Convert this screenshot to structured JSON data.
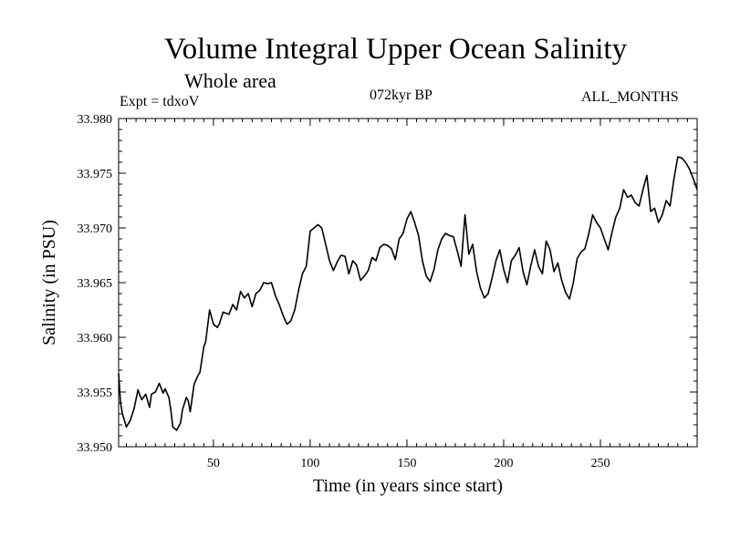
{
  "header": {
    "title": "Volume Integral Upper Ocean Salinity",
    "subtitle": "Whole area",
    "experiment": "Expt = tdxoV",
    "period": "072kyr BP",
    "months": "ALL_MONTHS"
  },
  "chart_data": {
    "type": "line",
    "title": "Volume Integral Upper Ocean Salinity",
    "xlabel": "Time (in years since start)",
    "ylabel": "Salinity (in PSU)",
    "xlim": [
      1,
      300
    ],
    "ylim": [
      33.95,
      33.98
    ],
    "x_ticks": [
      50,
      100,
      150,
      200,
      250
    ],
    "x_tick_labels": [
      "50",
      "100",
      "150",
      "200",
      "250"
    ],
    "y_ticks": [
      33.95,
      33.955,
      33.96,
      33.965,
      33.97,
      33.975,
      33.98
    ],
    "y_tick_labels": [
      "33.950",
      "33.955",
      "33.960",
      "33.965",
      "33.970",
      "33.975",
      "33.980"
    ],
    "grid": false,
    "series": [
      {
        "color": "#000000",
        "x": [
          1,
          2,
          3,
          5,
          7,
          9,
          11,
          12,
          13,
          15,
          17,
          18,
          20,
          22,
          24,
          25,
          27,
          28,
          29,
          31,
          33,
          34,
          36,
          37,
          38,
          40,
          42,
          43,
          45,
          46,
          48,
          50,
          52,
          53,
          55,
          58,
          60,
          62,
          64,
          66,
          68,
          70,
          72,
          74,
          76,
          78,
          80,
          82,
          84,
          86,
          88,
          90,
          92,
          94,
          96,
          98,
          100,
          102,
          104,
          106,
          108,
          110,
          112,
          114,
          116,
          118,
          120,
          122,
          124,
          126,
          128,
          130,
          132,
          134,
          136,
          138,
          140,
          142,
          144,
          146,
          148,
          150,
          152,
          154,
          156,
          158,
          160,
          162,
          164,
          166,
          168,
          170,
          172,
          174,
          176,
          178,
          180,
          182,
          184,
          186,
          188,
          190,
          192,
          194,
          196,
          198,
          200,
          202,
          204,
          206,
          208,
          210,
          212,
          214,
          216,
          218,
          220,
          222,
          224,
          226,
          228,
          230,
          232,
          234,
          236,
          238,
          240,
          242,
          244,
          246,
          248,
          250,
          252,
          254,
          256,
          258,
          260,
          262,
          264,
          266,
          268,
          270,
          272,
          274,
          276,
          278,
          280,
          282,
          284,
          286,
          288,
          290,
          292,
          294,
          296,
          298,
          300
        ],
        "values": [
          33.9567,
          33.954,
          33.953,
          33.9518,
          33.9524,
          33.9535,
          33.9552,
          33.9547,
          33.9543,
          33.9548,
          33.9536,
          33.9548,
          33.955,
          33.9558,
          33.9549,
          33.9553,
          33.9545,
          33.9533,
          33.9518,
          33.9515,
          33.9522,
          33.9534,
          33.9545,
          33.9542,
          33.9532,
          33.9557,
          33.9565,
          33.9568,
          33.9591,
          33.9596,
          33.9625,
          33.9612,
          33.9609,
          33.9612,
          33.9623,
          33.9621,
          33.963,
          33.9625,
          33.9642,
          33.9636,
          33.964,
          33.9628,
          33.964,
          33.9643,
          33.965,
          33.9649,
          33.965,
          33.9638,
          33.963,
          33.962,
          33.9612,
          33.9615,
          33.9625,
          33.9643,
          33.9658,
          33.9665,
          33.9697,
          33.97,
          33.9703,
          33.97,
          33.9685,
          33.967,
          33.9661,
          33.9669,
          33.9675,
          33.9674,
          33.9658,
          33.967,
          33.9666,
          33.9652,
          33.9656,
          33.9661,
          33.9673,
          33.967,
          33.9682,
          33.9685,
          33.9684,
          33.9681,
          33.9671,
          33.969,
          33.9695,
          33.9708,
          33.9715,
          33.9705,
          33.9693,
          33.967,
          33.9656,
          33.9651,
          33.9662,
          33.968,
          33.969,
          33.9695,
          33.9693,
          33.9692,
          33.9679,
          33.9665,
          33.9712,
          33.9676,
          33.9685,
          33.966,
          33.9645,
          33.9636,
          33.964,
          33.9654,
          33.967,
          33.968,
          33.9662,
          33.965,
          33.967,
          33.9675,
          33.9682,
          33.966,
          33.9648,
          33.9665,
          33.968,
          33.9665,
          33.9658,
          33.9688,
          33.968,
          33.966,
          33.9668,
          33.9652,
          33.9641,
          33.9635,
          33.965,
          33.9672,
          33.9678,
          33.9681,
          33.9695,
          33.9712,
          33.9705,
          33.97,
          33.969,
          33.968,
          33.9696,
          33.971,
          33.9718,
          33.9735,
          33.9728,
          33.973,
          33.9723,
          33.972,
          33.9735,
          33.9748,
          33.9715,
          33.9718,
          33.9705,
          33.9712,
          33.9725,
          33.972,
          33.9745,
          33.9765,
          33.9764,
          33.976,
          33.9754,
          33.9745,
          33.9735
        ]
      }
    ]
  }
}
